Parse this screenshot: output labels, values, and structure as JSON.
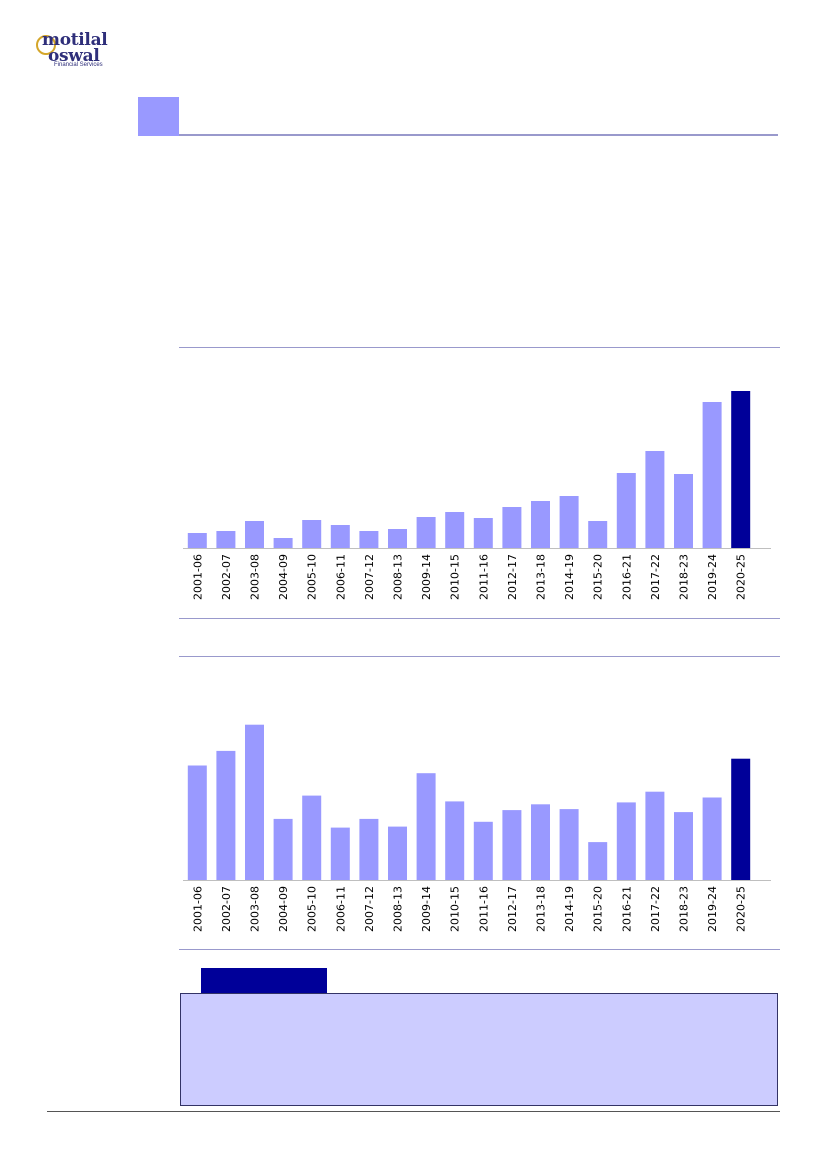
{
  "brand": {
    "name_line1": "motilal",
    "name_line2": "oswal",
    "tagline": "Financial Services"
  },
  "colors": {
    "accent_light": "#9999ff",
    "accent_dark": "#000099",
    "box_fill": "#ccccff",
    "rule": "#9999cc"
  },
  "chart_data": [
    {
      "type": "bar",
      "categories": [
        "2001-06",
        "2002-07",
        "2003-08",
        "2004-09",
        "2005-10",
        "2006-11",
        "2007-12",
        "2008-13",
        "2009-14",
        "2010-15",
        "2011-16",
        "2012-17",
        "2013-18",
        "2014-19",
        "2015-20",
        "2016-21",
        "2017-22",
        "2018-23",
        "2019-24",
        "2020-25"
      ],
      "values": [
        15,
        17,
        27,
        10,
        28,
        23,
        17,
        19,
        31,
        36,
        30,
        41,
        47,
        52,
        27,
        75,
        97,
        74,
        146,
        157
      ],
      "highlight_index": 19,
      "ylim": [
        0,
        165
      ],
      "grid": false,
      "legend": "none"
    },
    {
      "type": "bar",
      "categories": [
        "2001-06",
        "2002-07",
        "2003-08",
        "2004-09",
        "2005-10",
        "2006-11",
        "2007-12",
        "2008-13",
        "2009-14",
        "2010-15",
        "2011-16",
        "2012-17",
        "2013-18",
        "2014-19",
        "2015-20",
        "2016-21",
        "2017-22",
        "2018-23",
        "2019-24",
        "2020-25"
      ],
      "values": [
        118,
        133,
        160,
        63,
        87,
        54,
        63,
        55,
        110,
        81,
        60,
        72,
        78,
        73,
        39,
        80,
        91,
        70,
        85,
        125
      ],
      "highlight_index": 19,
      "ylim": [
        0,
        170
      ],
      "grid": false,
      "legend": "none"
    }
  ]
}
